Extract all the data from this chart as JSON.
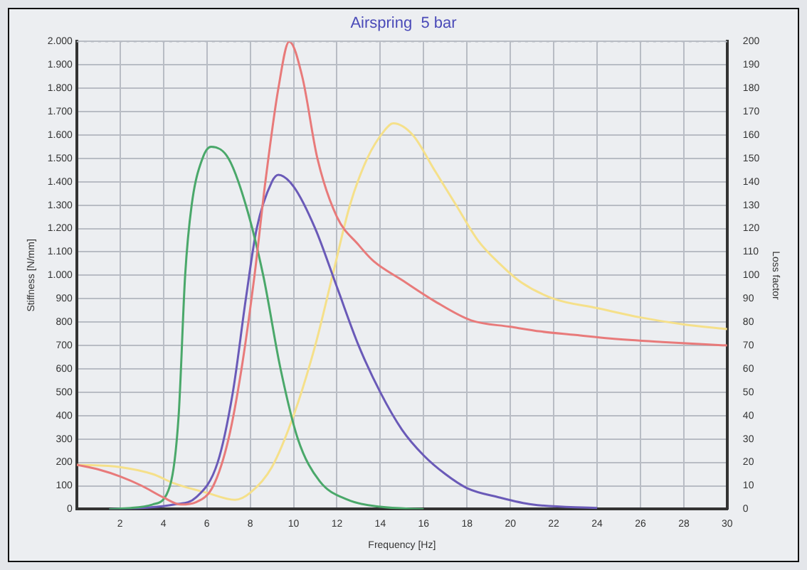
{
  "chart_data": {
    "type": "line",
    "title": "Airspring  5 bar",
    "xlabel": "Frequency [Hz]",
    "ylabel": "Stiffness [N/mm]",
    "y2label": "Loss factor",
    "xlim": [
      0,
      30
    ],
    "xticks": [
      2,
      4,
      6,
      8,
      10,
      12,
      14,
      16,
      18,
      20,
      22,
      24,
      26,
      28,
      30
    ],
    "ylim": [
      0,
      2000
    ],
    "yticks": [
      0,
      100,
      200,
      300,
      400,
      500,
      600,
      700,
      800,
      900,
      {
        "value": 1000,
        "label": "1.000"
      },
      {
        "value": 1100,
        "label": "1.100"
      },
      {
        "value": 1200,
        "label": "1.200"
      },
      {
        "value": 1300,
        "label": "1.300"
      },
      {
        "value": 1400,
        "label": "1.400"
      },
      {
        "value": 1500,
        "label": "1.500"
      },
      {
        "value": 1600,
        "label": "1.600"
      },
      {
        "value": 1700,
        "label": "1.700"
      },
      {
        "value": 1800,
        "label": "1.800"
      },
      {
        "value": 1900,
        "label": "1.900"
      },
      {
        "value": 2000,
        "label": "2.000"
      }
    ],
    "y2lim": [
      0,
      200
    ],
    "y2ticks": [
      0,
      10,
      20,
      30,
      40,
      50,
      60,
      70,
      80,
      90,
      100,
      110,
      120,
      130,
      140,
      150,
      160,
      170,
      180,
      190,
      200
    ],
    "grid": true,
    "legend": false,
    "marker": "none",
    "line_style": "solid",
    "series": [
      {
        "color": "#e87a7a",
        "x": [
          0,
          1,
          2,
          3,
          4,
          4.8,
          5.5,
          6.3,
          7,
          7.6,
          8.2,
          8.7,
          9.3,
          9.8,
          10.4,
          11.1,
          12,
          13,
          13.7,
          15,
          16.5,
          18.2,
          20,
          21.4,
          23,
          24.6,
          27,
          30
        ],
        "values": [
          190,
          170,
          140,
          100,
          50,
          20,
          30,
          100,
          300,
          600,
          1000,
          1400,
          1800,
          2000,
          1850,
          1500,
          1250,
          1130,
          1060,
          980,
          890,
          807,
          780,
          760,
          745,
          730,
          715,
          700
        ]
      },
      {
        "color": "#4aa86a",
        "x": [
          1.5,
          2.5,
          3.5,
          4.3,
          4.7,
          5,
          5.3,
          5.8,
          6.2,
          7,
          7.8,
          8.6,
          9.4,
          10.2,
          11.2,
          12.5,
          14,
          16
        ],
        "values": [
          0,
          5,
          20,
          100,
          400,
          1000,
          1300,
          1500,
          1550,
          1500,
          1300,
          1000,
          600,
          300,
          120,
          40,
          10,
          0
        ]
      },
      {
        "color": "#6a5ab8",
        "x": [
          1.5,
          3,
          4.5,
          5.5,
          6.5,
          7.2,
          7.8,
          8.3,
          9,
          9.3,
          10,
          11,
          12,
          13,
          14,
          15,
          16,
          17,
          18,
          19.5,
          21,
          24
        ],
        "values": [
          0,
          5,
          20,
          50,
          200,
          500,
          900,
          1200,
          1400,
          1430,
          1380,
          1200,
          950,
          700,
          500,
          340,
          230,
          150,
          90,
          50,
          20,
          5
        ]
      },
      {
        "color": "#f5e08a",
        "x": [
          0,
          2,
          3.5,
          4.5,
          6,
          7.3,
          8,
          9,
          10,
          11,
          11.8,
          12.6,
          13.4,
          14.2,
          14.6,
          15.5,
          16.5,
          17.5,
          18.5,
          19.5,
          20.5,
          22,
          24,
          26,
          28,
          30
        ],
        "values": [
          190,
          180,
          150,
          110,
          70,
          40,
          70,
          180,
          400,
          700,
          1000,
          1300,
          1500,
          1620,
          1650,
          1600,
          1450,
          1300,
          1150,
          1050,
          970,
          900,
          860,
          820,
          790,
          770
        ]
      }
    ]
  }
}
